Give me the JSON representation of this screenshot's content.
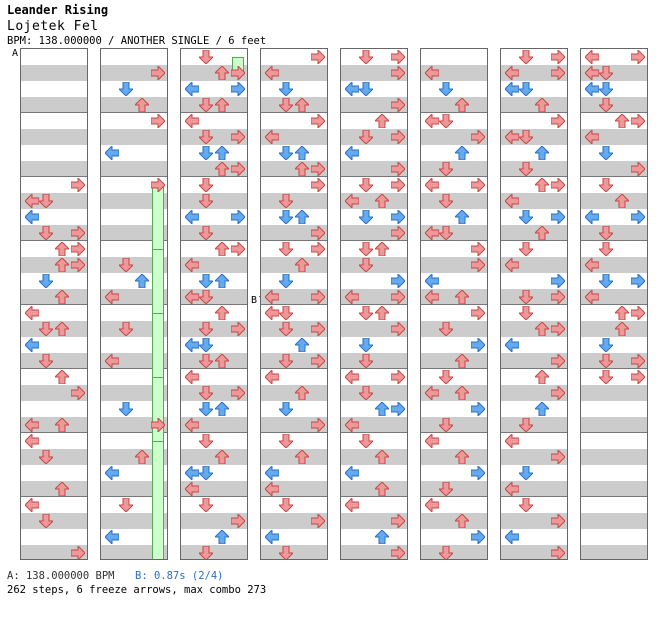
{
  "header": {
    "song_title": "Leander Rising",
    "artist": "Lojetek Fel",
    "chart_info": "BPM: 138.000000 / ANOTHER SINGLE / 6 feet"
  },
  "markers": {
    "a": "A",
    "b": "B"
  },
  "footer": {
    "bpm_a": "A: 138.000000 BPM",
    "bpm_b": "B: 0.87s (2/4)",
    "stats": "262 steps, 6 freeze arrows, max combo 273"
  },
  "colors": {
    "red": "#ee9999",
    "blue": "#66aaee",
    "freeze": "#ccffcc",
    "shock": "#ee88ee"
  },
  "lanes": [
    {
      "notes": [
        [
          8,
          "R"
        ],
        [
          9,
          "D"
        ],
        [
          9,
          "L"
        ],
        [
          10,
          "L"
        ],
        [
          10,
          "L"
        ],
        [
          11,
          "D"
        ],
        [
          11,
          "R"
        ],
        [
          12,
          "R"
        ],
        [
          12,
          "U"
        ],
        [
          13,
          "U"
        ],
        [
          13,
          "U"
        ],
        [
          13,
          "R"
        ],
        [
          14,
          "D"
        ],
        [
          15,
          "U"
        ],
        [
          16,
          "L"
        ],
        [
          17,
          "D"
        ],
        [
          17,
          "U"
        ],
        [
          18,
          "L"
        ],
        [
          19,
          "D"
        ],
        [
          20,
          "U"
        ],
        [
          21,
          "R"
        ],
        [
          23,
          "U"
        ],
        [
          23,
          "L"
        ],
        [
          24,
          "L"
        ],
        [
          25,
          "D"
        ],
        [
          27,
          "U"
        ],
        [
          28,
          "L"
        ],
        [
          29,
          "D"
        ],
        [
          31,
          "R"
        ]
      ],
      "freezes": []
    },
    {
      "notes": [
        [
          1,
          "R"
        ],
        [
          2,
          "D"
        ],
        [
          3,
          "U"
        ],
        [
          4,
          "R"
        ],
        [
          6,
          "L"
        ],
        [
          8,
          "R"
        ],
        [
          13,
          "D"
        ],
        [
          14,
          "U"
        ],
        [
          15,
          "L"
        ],
        [
          17,
          "D"
        ],
        [
          19,
          "L"
        ],
        [
          22,
          "D"
        ],
        [
          23,
          "R"
        ],
        [
          25,
          "U"
        ],
        [
          26,
          "L"
        ],
        [
          28,
          "D"
        ],
        [
          30,
          "L"
        ]
      ],
      "freezes": [
        [
          8,
          13
        ],
        [
          12,
          17
        ],
        [
          16,
          21
        ],
        [
          20,
          26
        ],
        [
          24,
          32
        ]
      ]
    },
    {
      "notes": [
        [
          0,
          "D"
        ],
        [
          1,
          "U"
        ],
        [
          1,
          "R"
        ],
        [
          2,
          "L"
        ],
        [
          2,
          "R"
        ],
        [
          3,
          "U"
        ],
        [
          3,
          "D"
        ],
        [
          4,
          "L"
        ],
        [
          5,
          "D"
        ],
        [
          5,
          "R"
        ],
        [
          6,
          "U"
        ],
        [
          6,
          "D"
        ],
        [
          7,
          "U"
        ],
        [
          7,
          "R"
        ],
        [
          8,
          "D"
        ],
        [
          8,
          "D"
        ],
        [
          9,
          "D"
        ],
        [
          10,
          "R"
        ],
        [
          10,
          "L"
        ],
        [
          11,
          "D"
        ],
        [
          12,
          "U"
        ],
        [
          12,
          "R"
        ],
        [
          13,
          "L"
        ],
        [
          14,
          "D"
        ],
        [
          14,
          "U"
        ],
        [
          15,
          "D"
        ],
        [
          15,
          "L"
        ],
        [
          16,
          "U"
        ],
        [
          17,
          "R"
        ],
        [
          17,
          "D"
        ],
        [
          18,
          "D"
        ],
        [
          18,
          "L"
        ],
        [
          19,
          "U"
        ],
        [
          19,
          "D"
        ],
        [
          20,
          "L"
        ],
        [
          21,
          "D"
        ],
        [
          21,
          "R"
        ],
        [
          22,
          "U"
        ],
        [
          22,
          "D"
        ],
        [
          23,
          "L"
        ],
        [
          24,
          "D"
        ],
        [
          25,
          "U"
        ],
        [
          26,
          "L"
        ],
        [
          26,
          "D"
        ],
        [
          27,
          "L"
        ],
        [
          28,
          "D"
        ],
        [
          29,
          "R"
        ],
        [
          30,
          "U"
        ],
        [
          31,
          "D"
        ]
      ],
      "freezes": [
        [
          0,
          1
        ]
      ]
    },
    {
      "notes": [
        [
          0,
          "R"
        ],
        [
          1,
          "L"
        ],
        [
          2,
          "D"
        ],
        [
          3,
          "D"
        ],
        [
          3,
          "U"
        ],
        [
          4,
          "R"
        ],
        [
          5,
          "L"
        ],
        [
          6,
          "U"
        ],
        [
          6,
          "D"
        ],
        [
          7,
          "R"
        ],
        [
          7,
          "U"
        ],
        [
          8,
          "R"
        ],
        [
          9,
          "D"
        ],
        [
          10,
          "U"
        ],
        [
          10,
          "D"
        ],
        [
          11,
          "R"
        ],
        [
          12,
          "D"
        ],
        [
          12,
          "R"
        ],
        [
          13,
          "U"
        ],
        [
          14,
          "D"
        ],
        [
          15,
          "L"
        ],
        [
          15,
          "R"
        ],
        [
          16,
          "D"
        ],
        [
          16,
          "L"
        ],
        [
          17,
          "R"
        ],
        [
          17,
          "D"
        ],
        [
          18,
          "U"
        ],
        [
          19,
          "R"
        ],
        [
          19,
          "D"
        ],
        [
          20,
          "L"
        ],
        [
          21,
          "U"
        ],
        [
          22,
          "D"
        ],
        [
          23,
          "R"
        ],
        [
          24,
          "D"
        ],
        [
          25,
          "U"
        ],
        [
          26,
          "L"
        ],
        [
          27,
          "L"
        ],
        [
          28,
          "D"
        ],
        [
          29,
          "R"
        ],
        [
          30,
          "L"
        ],
        [
          31,
          "D"
        ]
      ],
      "freezes": []
    },
    {
      "notes": [
        [
          0,
          "R"
        ],
        [
          0,
          "D"
        ],
        [
          1,
          "R"
        ],
        [
          2,
          "L"
        ],
        [
          2,
          "D"
        ],
        [
          3,
          "R"
        ],
        [
          4,
          "U"
        ],
        [
          5,
          "D"
        ],
        [
          5,
          "R"
        ],
        [
          6,
          "L"
        ],
        [
          7,
          "R"
        ],
        [
          8,
          "D"
        ],
        [
          8,
          "R"
        ],
        [
          9,
          "U"
        ],
        [
          9,
          "L"
        ],
        [
          10,
          "D"
        ],
        [
          10,
          "R"
        ],
        [
          11,
          "R"
        ],
        [
          12,
          "U"
        ],
        [
          12,
          "D"
        ],
        [
          13,
          "D"
        ],
        [
          14,
          "R"
        ],
        [
          15,
          "R"
        ],
        [
          15,
          "L"
        ],
        [
          16,
          "D"
        ],
        [
          16,
          "U"
        ],
        [
          17,
          "R"
        ],
        [
          18,
          "D"
        ],
        [
          19,
          "D"
        ],
        [
          20,
          "L"
        ],
        [
          20,
          "R"
        ],
        [
          21,
          "D"
        ],
        [
          22,
          "U"
        ],
        [
          22,
          "R"
        ],
        [
          23,
          "L"
        ],
        [
          24,
          "D"
        ],
        [
          25,
          "U"
        ],
        [
          26,
          "L"
        ],
        [
          27,
          "U"
        ],
        [
          28,
          "L"
        ],
        [
          29,
          "R"
        ],
        [
          30,
          "U"
        ],
        [
          31,
          "R"
        ],
        [
          32,
          "D"
        ]
      ],
      "freezes": []
    },
    {
      "notes": [
        [
          1,
          "L"
        ],
        [
          2,
          "D"
        ],
        [
          3,
          "U"
        ],
        [
          4,
          "L"
        ],
        [
          4,
          "D"
        ],
        [
          5,
          "R"
        ],
        [
          6,
          "U"
        ],
        [
          7,
          "D"
        ],
        [
          8,
          "L"
        ],
        [
          8,
          "R"
        ],
        [
          9,
          "D"
        ],
        [
          10,
          "U"
        ],
        [
          11,
          "L"
        ],
        [
          11,
          "D"
        ],
        [
          12,
          "R"
        ],
        [
          13,
          "R"
        ],
        [
          14,
          "L"
        ],
        [
          15,
          "U"
        ],
        [
          15,
          "L"
        ],
        [
          16,
          "R"
        ],
        [
          17,
          "D"
        ],
        [
          18,
          "R"
        ],
        [
          19,
          "U"
        ],
        [
          20,
          "D"
        ],
        [
          21,
          "U"
        ],
        [
          21,
          "L"
        ],
        [
          22,
          "R"
        ],
        [
          23,
          "D"
        ],
        [
          24,
          "L"
        ],
        [
          25,
          "U"
        ],
        [
          26,
          "R"
        ],
        [
          27,
          "D"
        ],
        [
          28,
          "L"
        ],
        [
          29,
          "U"
        ],
        [
          30,
          "R"
        ],
        [
          31,
          "D"
        ]
      ],
      "freezes": []
    },
    {
      "notes": [
        [
          0,
          "D"
        ],
        [
          0,
          "R"
        ],
        [
          1,
          "L"
        ],
        [
          1,
          "R"
        ],
        [
          2,
          "D"
        ],
        [
          2,
          "L"
        ],
        [
          3,
          "U"
        ],
        [
          4,
          "R"
        ],
        [
          5,
          "L"
        ],
        [
          5,
          "D"
        ],
        [
          6,
          "U"
        ],
        [
          7,
          "D"
        ],
        [
          8,
          "R"
        ],
        [
          8,
          "U"
        ],
        [
          9,
          "L"
        ],
        [
          10,
          "D"
        ],
        [
          10,
          "R"
        ],
        [
          11,
          "U"
        ],
        [
          12,
          "D"
        ],
        [
          13,
          "L"
        ],
        [
          14,
          "R"
        ],
        [
          15,
          "D"
        ],
        [
          15,
          "R"
        ],
        [
          16,
          "D"
        ],
        [
          17,
          "U"
        ],
        [
          17,
          "R"
        ],
        [
          18,
          "L"
        ],
        [
          19,
          "R"
        ],
        [
          20,
          "U"
        ],
        [
          21,
          "R"
        ],
        [
          22,
          "U"
        ],
        [
          23,
          "D"
        ],
        [
          24,
          "L"
        ],
        [
          25,
          "R"
        ],
        [
          26,
          "D"
        ],
        [
          27,
          "L"
        ],
        [
          28,
          "D"
        ],
        [
          29,
          "R"
        ],
        [
          30,
          "L"
        ],
        [
          31,
          "R"
        ]
      ],
      "freezes": []
    },
    {
      "notes": [
        [
          0,
          "L"
        ],
        [
          0,
          "R"
        ],
        [
          1,
          "D"
        ],
        [
          1,
          "L"
        ],
        [
          2,
          "D"
        ],
        [
          2,
          "L"
        ],
        [
          3,
          "D"
        ],
        [
          4,
          "R"
        ],
        [
          4,
          "U"
        ],
        [
          5,
          "L"
        ],
        [
          6,
          "D"
        ],
        [
          7,
          "R"
        ],
        [
          8,
          "D"
        ],
        [
          9,
          "U"
        ],
        [
          10,
          "R"
        ],
        [
          10,
          "L"
        ],
        [
          11,
          "D"
        ],
        [
          12,
          "D"
        ],
        [
          13,
          "L"
        ],
        [
          14,
          "D"
        ],
        [
          14,
          "R"
        ],
        [
          15,
          "L"
        ],
        [
          16,
          "U"
        ],
        [
          16,
          "R"
        ],
        [
          17,
          "U"
        ],
        [
          18,
          "D"
        ],
        [
          19,
          "R"
        ],
        [
          19,
          "D"
        ],
        [
          20,
          "R"
        ],
        [
          20,
          "D"
        ]
      ],
      "freezes": []
    }
  ]
}
